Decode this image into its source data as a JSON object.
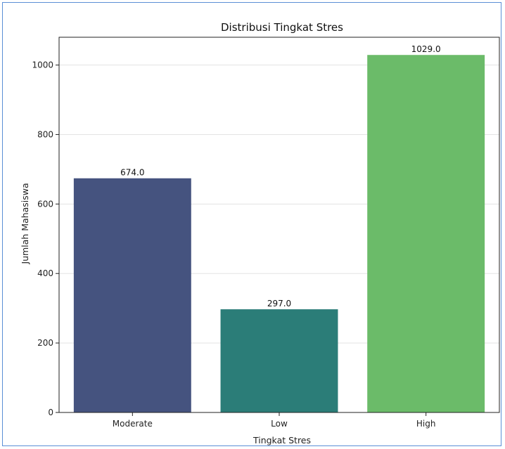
{
  "chart_data": {
    "type": "bar",
    "title": "Distribusi Tingkat Stres",
    "xlabel": "Tingkat Stres",
    "ylabel": "Jumlah Mahasiswa",
    "categories": [
      "Moderate",
      "Low",
      "High"
    ],
    "values": [
      674,
      297,
      1029
    ],
    "data_labels": [
      "674.0",
      "297.0",
      "1029.0"
    ],
    "colors": [
      "#45537f",
      "#2b7d78",
      "#6bbb69"
    ],
    "ylim": [
      0,
      1080
    ],
    "yticks": [
      0,
      200,
      400,
      600,
      800,
      1000
    ],
    "grid": "horizontal",
    "legend": "none"
  }
}
